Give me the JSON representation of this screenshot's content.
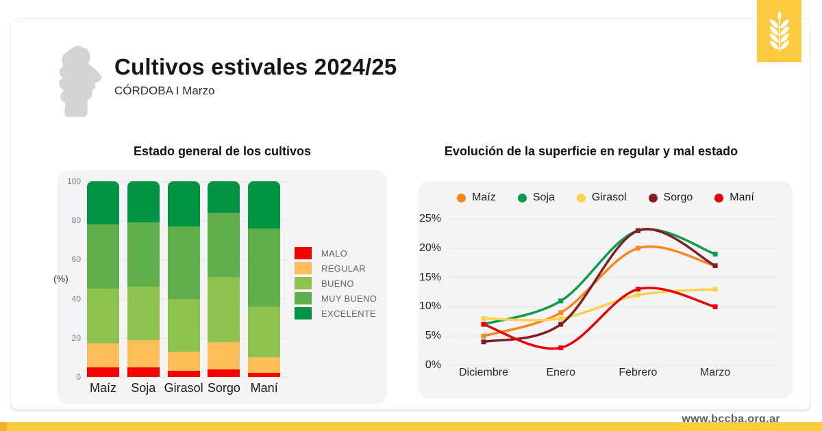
{
  "header": {
    "title": "Cultivos estivales 2024/25",
    "subtitle": "CÓRDOBA I Marzo"
  },
  "footer": {
    "website": "www.bccba.org.ar"
  },
  "brand": {
    "accent_yellow": "#FDCB3F",
    "accent_orange": "#F2AE2E",
    "map_gray": "#D4D4D4"
  },
  "icons": {
    "corner": "wheat-icon",
    "map": "cordoba-province-map"
  },
  "chart_data": [
    {
      "type": "bar",
      "stacked": true,
      "title": "Estado general de los cultivos",
      "ylabel": "(%)",
      "categories": [
        "Maíz",
        "Soja",
        "Girasol",
        "Sorgo",
        "Maní"
      ],
      "series": [
        {
          "name": "MALO",
          "color": "#F60000",
          "values": [
            5,
            5,
            3,
            4,
            2
          ]
        },
        {
          "name": "REGULAR",
          "color": "#FDBD59",
          "values": [
            12,
            14,
            10,
            14,
            8
          ]
        },
        {
          "name": "BUENO",
          "color": "#8EC24E",
          "values": [
            28,
            27,
            27,
            33,
            26
          ]
        },
        {
          "name": "MUY BUENO",
          "color": "#5FAE4A",
          "values": [
            33,
            33,
            37,
            33,
            40
          ]
        },
        {
          "name": "EXCELENTE",
          "color": "#009344",
          "values": [
            22,
            21,
            23,
            16,
            24
          ]
        }
      ],
      "yticks": [
        0,
        20,
        40,
        60,
        80,
        100
      ],
      "ylim": [
        0,
        100
      ],
      "grid": true,
      "legend_position": "right"
    },
    {
      "type": "line",
      "title": "Evolución de la superficie en regular y mal estado",
      "x": [
        "Diciembre",
        "Enero",
        "Febrero",
        "Marzo"
      ],
      "series": [
        {
          "name": "Maíz",
          "color": "#F6861F",
          "values": [
            5,
            9,
            20,
            17
          ]
        },
        {
          "name": "Soja",
          "color": "#0E9C4A",
          "values": [
            7,
            11,
            23,
            19
          ]
        },
        {
          "name": "Girasol",
          "color": "#FBD24B",
          "values": [
            8,
            8,
            12,
            13
          ]
        },
        {
          "name": "Sorgo",
          "color": "#7E2023",
          "values": [
            4,
            7,
            23,
            17
          ]
        },
        {
          "name": "Maní",
          "color": "#E90006",
          "values": [
            7,
            3,
            13,
            10
          ]
        }
      ],
      "yticks": [
        0,
        5,
        10,
        15,
        20,
        25
      ],
      "ytick_suffix": "%",
      "ylim": [
        0,
        26
      ],
      "grid": true,
      "legend_position": "top",
      "marker": "square"
    }
  ]
}
